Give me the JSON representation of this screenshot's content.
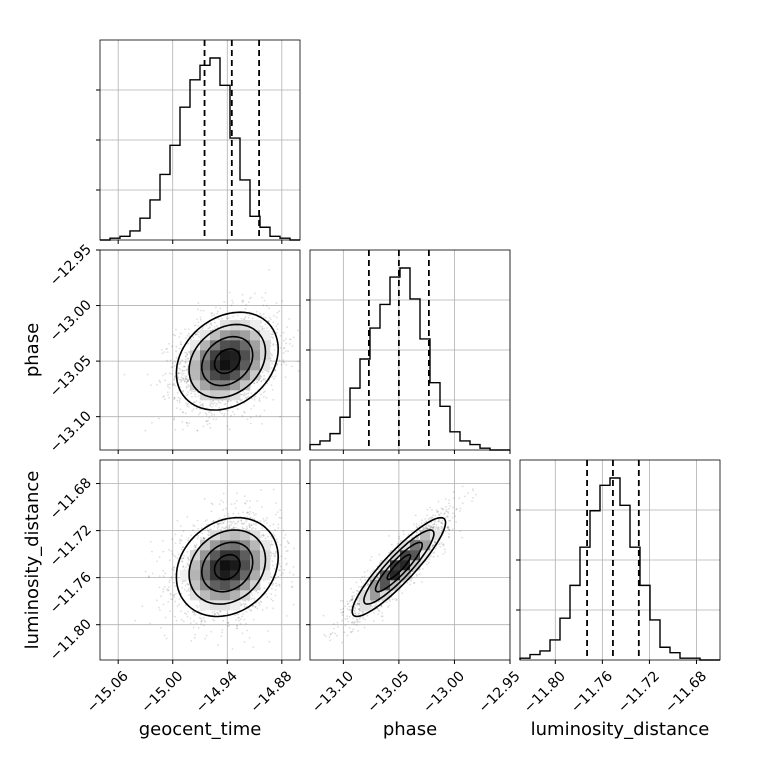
{
  "chart_data": {
    "type": "corner",
    "parameters": [
      "geocent_time",
      "phase",
      "luminosity_distance"
    ],
    "axis_labels": [
      "geocent_time",
      "phase",
      "luminosity_distance"
    ],
    "ranges": [
      [
        -15.08,
        -14.86
      ],
      [
        -13.13,
        -12.95
      ],
      [
        -11.83,
        -11.66
      ]
    ],
    "ticks": [
      [
        -15.06,
        -15.0,
        -14.94,
        -14.88
      ],
      [
        -13.1,
        -13.05,
        -13.0,
        -12.95
      ],
      [
        -11.8,
        -11.76,
        -11.72,
        -11.68
      ]
    ],
    "tick_labels": [
      [
        "−15.06",
        "−15.00",
        "−14.94",
        "−14.88"
      ],
      [
        "−13.10",
        "−13.05",
        "−13.00",
        "−12.95"
      ],
      [
        "−11.80",
        "−11.76",
        "−11.72",
        "−11.68"
      ]
    ],
    "quantiles": [
      [
        -14.965,
        -14.935,
        -14.905
      ],
      [
        -13.077,
        -13.05,
        -13.023
      ],
      [
        -11.773,
        -11.751,
        -11.729
      ]
    ],
    "histograms": [
      [
        0,
        0.01,
        0.02,
        0.05,
        0.12,
        0.22,
        0.36,
        0.52,
        0.73,
        0.88,
        0.96,
        1.0,
        0.85,
        0.56,
        0.33,
        0.13,
        0.07,
        0.02,
        0.01,
        0
      ],
      [
        0.03,
        0.05,
        0.09,
        0.18,
        0.34,
        0.5,
        0.67,
        0.8,
        0.95,
        1.0,
        0.83,
        0.61,
        0.37,
        0.24,
        0.1,
        0.05,
        0.03,
        0.01,
        0.0,
        0
      ],
      [
        0.01,
        0.03,
        0.05,
        0.11,
        0.23,
        0.41,
        0.62,
        0.82,
        0.96,
        1.0,
        0.85,
        0.62,
        0.41,
        0.22,
        0.07,
        0.04,
        0.01,
        0.01,
        0.0,
        0
      ]
    ],
    "joint": [
      {
        "x": 1,
        "y": 0,
        "mean": [
          -14.94,
          -13.05
        ],
        "std": [
          0.028,
          0.022
        ],
        "corr": 0.25
      },
      {
        "x": 2,
        "y": 0,
        "mean": [
          -14.94,
          -11.751
        ],
        "std": [
          0.028,
          0.021
        ],
        "corr": 0.2
      },
      {
        "x": 2,
        "y": 1,
        "mean": [
          -13.05,
          -11.751
        ],
        "std": [
          0.021,
          0.021
        ],
        "corr": 0.9
      }
    ],
    "grid": true
  }
}
